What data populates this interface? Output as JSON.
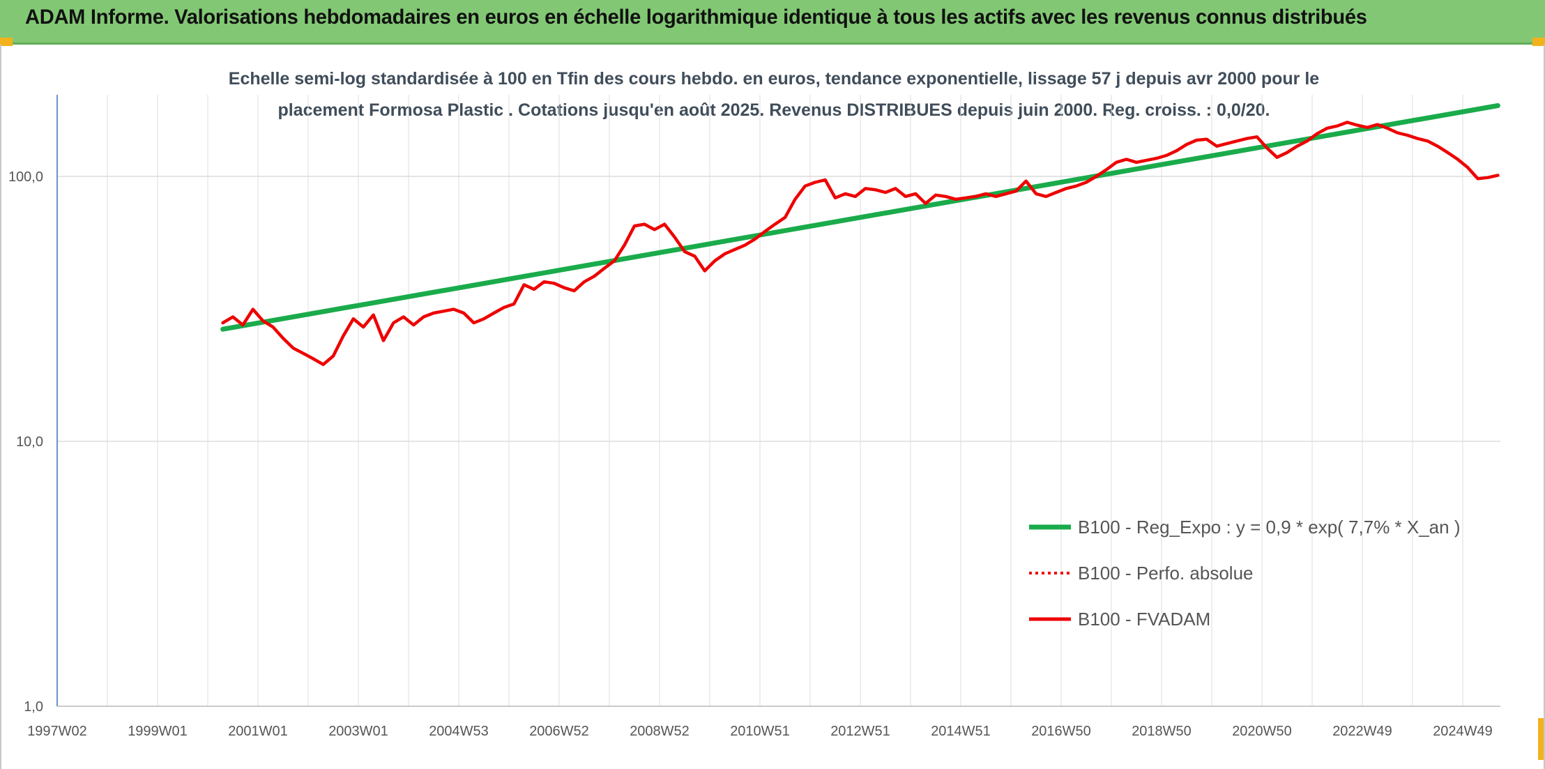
{
  "header": {
    "title": "ADAM Informe. Valorisations hebdomadaires en euros en échelle logarithmique identique à tous les actifs avec les revenus connus distribués"
  },
  "colors": {
    "header_bg": "#82c874",
    "accent_corner": "#f2b21b",
    "regression": "#1aab4b",
    "fvadam": "#ee0000",
    "perfo": "#ee0000",
    "grid": "#dcdcdc",
    "axis": "#3a6fb0"
  },
  "chart_data": {
    "type": "line",
    "title_line1": "Echelle semi-log standardisée à 100 en Tfin des cours hebdo. en euros, tendance exponentielle, lissage 57 j depuis avr 2000 pour le",
    "title_line2": "placement Formosa Plastic . Cotations jusqu'en août 2025. Revenus DISTRIBUES depuis juin 2000. Reg. croiss. : 0,0/20.",
    "y_scale": "log",
    "ylim": [
      1,
      200
    ],
    "y_ticks": [
      {
        "value": 1,
        "label": "1,0"
      },
      {
        "value": 10,
        "label": "10,0"
      },
      {
        "value": 100,
        "label": "100,0"
      }
    ],
    "x_range": [
      1997.0,
      2025.7
    ],
    "x_ticks": [
      {
        "year": 1997.0,
        "label": "1997W02"
      },
      {
        "year": 1999.0,
        "label": "1999W01"
      },
      {
        "year": 2001.0,
        "label": "2001W01"
      },
      {
        "year": 2003.0,
        "label": "2003W01"
      },
      {
        "year": 2005.0,
        "label": "2004W53"
      },
      {
        "year": 2007.0,
        "label": "2006W52"
      },
      {
        "year": 2009.0,
        "label": "2008W52"
      },
      {
        "year": 2011.0,
        "label": "2010W51"
      },
      {
        "year": 2013.0,
        "label": "2012W51"
      },
      {
        "year": 2015.0,
        "label": "2014W51"
      },
      {
        "year": 2017.0,
        "label": "2016W50"
      },
      {
        "year": 2019.0,
        "label": "2018W50"
      },
      {
        "year": 2021.0,
        "label": "2020W50"
      },
      {
        "year": 2023.0,
        "label": "2022W49"
      },
      {
        "year": 2025.0,
        "label": "2024W49"
      }
    ],
    "grid": true,
    "legend_position": "bottom-right",
    "series": [
      {
        "name": "B100 - Reg_Expo : y = 0,9 * exp( 7,7% *  X_an )",
        "style": "solid-thick",
        "points": [
          [
            2000.3,
            26.5
          ],
          [
            2025.7,
            185
          ]
        ]
      },
      {
        "name": "B100 - Perfo. absolue",
        "style": "dotted",
        "points": []
      },
      {
        "name": "B100 - FVADAM",
        "style": "solid",
        "points": [
          [
            2000.3,
            28
          ],
          [
            2000.5,
            29.5
          ],
          [
            2000.7,
            27.5
          ],
          [
            2000.9,
            31.5
          ],
          [
            2001.1,
            28.5
          ],
          [
            2001.3,
            27
          ],
          [
            2001.5,
            24.5
          ],
          [
            2001.7,
            22.5
          ],
          [
            2001.9,
            21.5
          ],
          [
            2002.1,
            20.5
          ],
          [
            2002.3,
            19.5
          ],
          [
            2002.5,
            21
          ],
          [
            2002.7,
            25
          ],
          [
            2002.9,
            29
          ],
          [
            2003.1,
            27
          ],
          [
            2003.3,
            30
          ],
          [
            2003.5,
            24
          ],
          [
            2003.7,
            28
          ],
          [
            2003.9,
            29.5
          ],
          [
            2004.1,
            27.5
          ],
          [
            2004.3,
            29.5
          ],
          [
            2004.5,
            30.5
          ],
          [
            2004.7,
            31
          ],
          [
            2004.9,
            31.5
          ],
          [
            2005.1,
            30.5
          ],
          [
            2005.3,
            28
          ],
          [
            2005.5,
            29
          ],
          [
            2005.7,
            30.5
          ],
          [
            2005.9,
            32
          ],
          [
            2006.1,
            33
          ],
          [
            2006.3,
            39
          ],
          [
            2006.5,
            37.5
          ],
          [
            2006.7,
            40
          ],
          [
            2006.9,
            39.5
          ],
          [
            2007.1,
            38
          ],
          [
            2007.3,
            37
          ],
          [
            2007.5,
            40
          ],
          [
            2007.7,
            42
          ],
          [
            2007.9,
            45
          ],
          [
            2008.1,
            48
          ],
          [
            2008.3,
            55
          ],
          [
            2008.5,
            65
          ],
          [
            2008.7,
            66
          ],
          [
            2008.9,
            63
          ],
          [
            2009.1,
            66
          ],
          [
            2009.3,
            59
          ],
          [
            2009.5,
            52
          ],
          [
            2009.7,
            50
          ],
          [
            2009.9,
            44
          ],
          [
            2010.1,
            48
          ],
          [
            2010.3,
            51
          ],
          [
            2010.5,
            53
          ],
          [
            2010.7,
            55
          ],
          [
            2010.9,
            58
          ],
          [
            2011.1,
            62
          ],
          [
            2011.3,
            66
          ],
          [
            2011.5,
            70
          ],
          [
            2011.7,
            82
          ],
          [
            2011.9,
            92
          ],
          [
            2012.1,
            95
          ],
          [
            2012.3,
            97
          ],
          [
            2012.5,
            83
          ],
          [
            2012.7,
            86
          ],
          [
            2012.9,
            84
          ],
          [
            2013.1,
            90
          ],
          [
            2013.3,
            89
          ],
          [
            2013.5,
            87
          ],
          [
            2013.7,
            90
          ],
          [
            2013.9,
            84
          ],
          [
            2014.1,
            86
          ],
          [
            2014.3,
            79
          ],
          [
            2014.5,
            85
          ],
          [
            2014.7,
            84
          ],
          [
            2014.9,
            82
          ],
          [
            2015.1,
            83
          ],
          [
            2015.3,
            84
          ],
          [
            2015.5,
            86
          ],
          [
            2015.7,
            84
          ],
          [
            2015.9,
            86
          ],
          [
            2016.1,
            88
          ],
          [
            2016.3,
            96
          ],
          [
            2016.5,
            86
          ],
          [
            2016.7,
            84
          ],
          [
            2016.9,
            87
          ],
          [
            2017.1,
            90
          ],
          [
            2017.3,
            92
          ],
          [
            2017.5,
            95
          ],
          [
            2017.7,
            100
          ],
          [
            2017.9,
            106
          ],
          [
            2018.1,
            113
          ],
          [
            2018.3,
            116
          ],
          [
            2018.5,
            113
          ],
          [
            2018.7,
            115
          ],
          [
            2018.9,
            117
          ],
          [
            2019.1,
            120
          ],
          [
            2019.3,
            125
          ],
          [
            2019.5,
            132
          ],
          [
            2019.7,
            137
          ],
          [
            2019.9,
            138
          ],
          [
            2020.1,
            130
          ],
          [
            2020.3,
            133
          ],
          [
            2020.5,
            136
          ],
          [
            2020.7,
            139
          ],
          [
            2020.9,
            141
          ],
          [
            2021.1,
            128
          ],
          [
            2021.3,
            118
          ],
          [
            2021.5,
            123
          ],
          [
            2021.7,
            130
          ],
          [
            2021.9,
            136
          ],
          [
            2022.1,
            145
          ],
          [
            2022.3,
            152
          ],
          [
            2022.5,
            155
          ],
          [
            2022.7,
            160
          ],
          [
            2022.9,
            156
          ],
          [
            2023.1,
            153
          ],
          [
            2023.3,
            157
          ],
          [
            2023.5,
            152
          ],
          [
            2023.7,
            146
          ],
          [
            2023.9,
            143
          ],
          [
            2024.1,
            139
          ],
          [
            2024.3,
            136
          ],
          [
            2024.5,
            130
          ],
          [
            2024.7,
            123
          ],
          [
            2024.9,
            116
          ],
          [
            2025.1,
            108
          ],
          [
            2025.3,
            98
          ],
          [
            2025.5,
            99
          ],
          [
            2025.7,
            101
          ]
        ]
      }
    ]
  }
}
